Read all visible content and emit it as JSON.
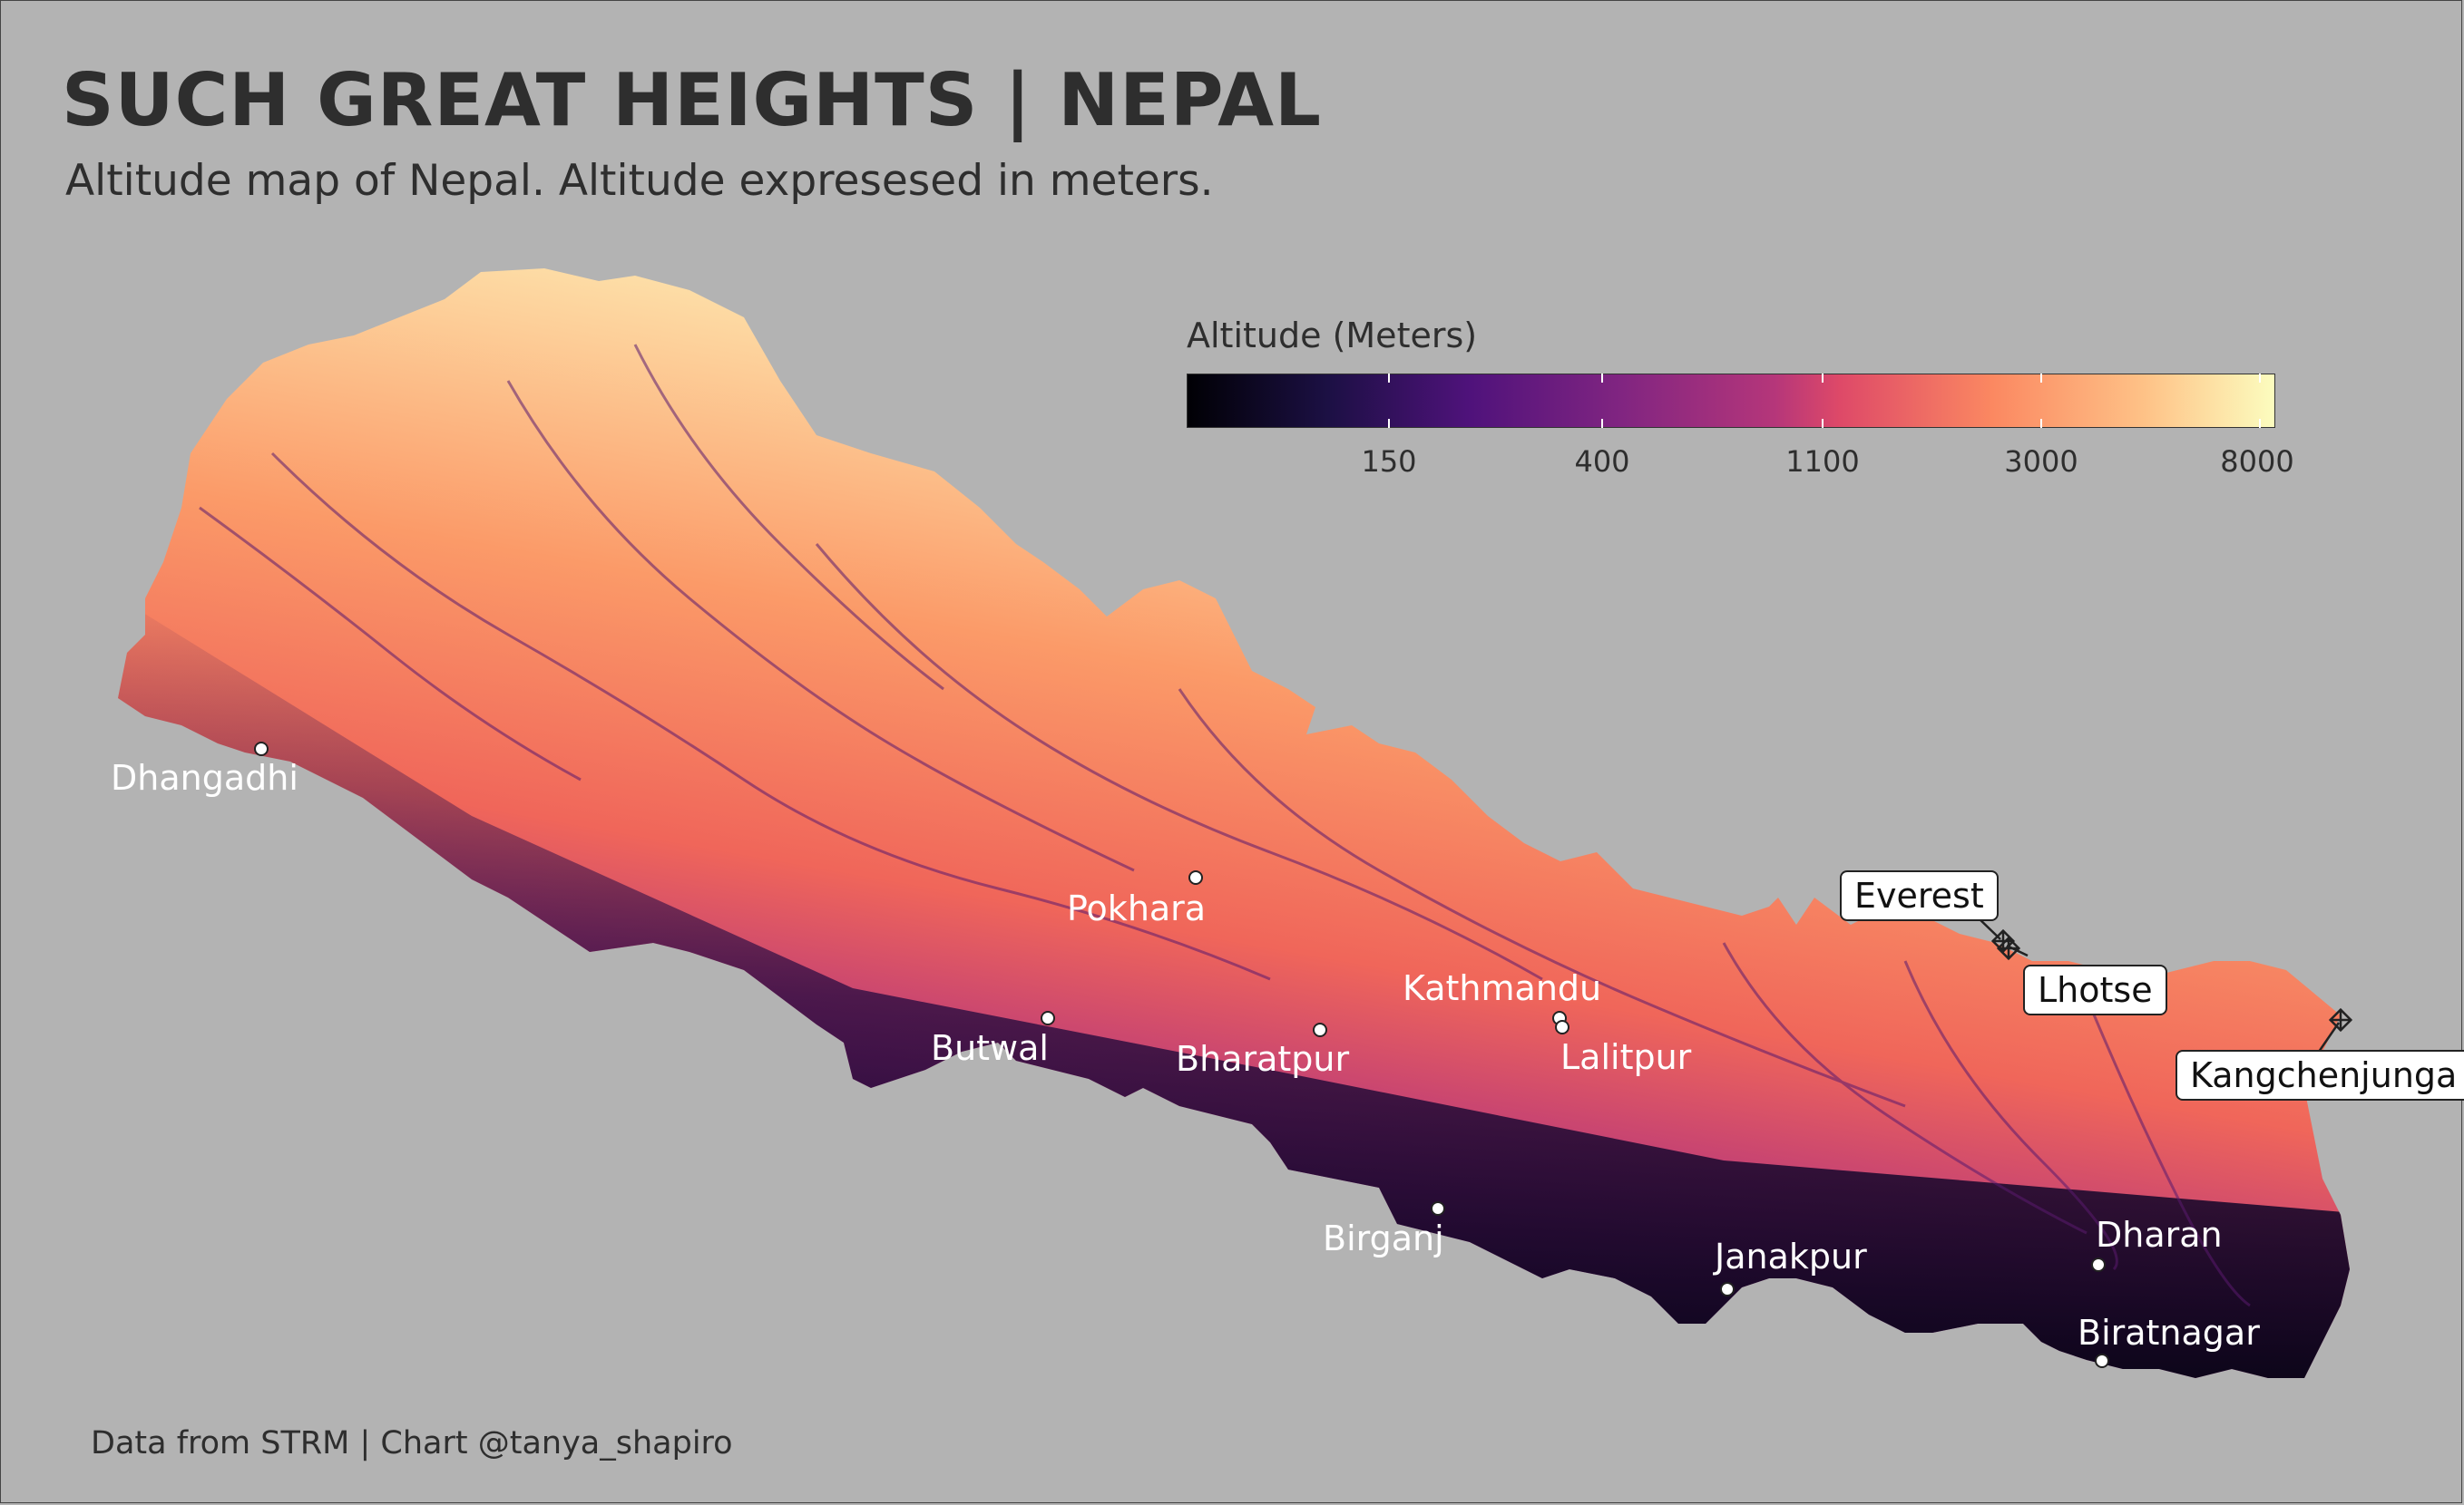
{
  "title": "SUCH GREAT HEIGHTS | NEPAL",
  "subtitle": "Altitude map of Nepal. Altitude expresesed in meters.",
  "caption": "Data from STRM | Chart @tanya_shapiro",
  "colors": {
    "background": "#b3b3b3",
    "low": "#0b0519",
    "mid_low": "#3b0f70",
    "mid": "#8c2981",
    "mid_high": "#de4968",
    "high": "#fe9f6d",
    "peak": "#fcfdbf"
  },
  "legend": {
    "title": "Altitude (Meters)",
    "scale": "log",
    "ticks": [
      "150",
      "400",
      "1100",
      "3000",
      "8000"
    ]
  },
  "cities": [
    {
      "name": "Dhangadhi"
    },
    {
      "name": "Pokhara"
    },
    {
      "name": "Butwal"
    },
    {
      "name": "Bharatpur"
    },
    {
      "name": "Kathmandu"
    },
    {
      "name": "Lalitpur"
    },
    {
      "name": "Birganj"
    },
    {
      "name": "Janakpur"
    },
    {
      "name": "Dharan"
    },
    {
      "name": "Biratnagar"
    }
  ],
  "peaks": [
    {
      "name": "Everest"
    },
    {
      "name": "Lhotse"
    },
    {
      "name": "Kangchenjunga"
    }
  ]
}
